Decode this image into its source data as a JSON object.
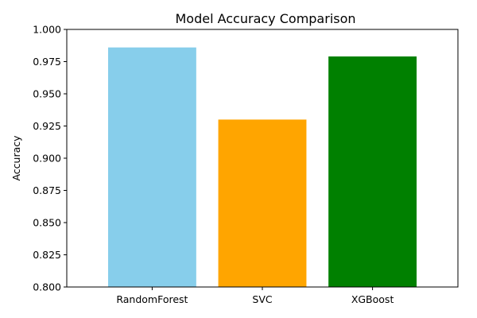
{
  "chart_data": {
    "type": "bar",
    "title": "Model Accuracy Comparison",
    "xlabel": "",
    "ylabel": "Accuracy",
    "categories": [
      "RandomForest",
      "SVC",
      "XGBoost"
    ],
    "values": [
      0.986,
      0.93,
      0.979
    ],
    "colors": [
      "#87ceeb",
      "#ffa500",
      "#008000"
    ],
    "ylim": [
      0.8,
      1.0
    ],
    "yticks": [
      0.8,
      0.825,
      0.85,
      0.875,
      0.9,
      0.925,
      0.95,
      0.975,
      1.0
    ],
    "ytick_labels": [
      "0.800",
      "0.825",
      "0.850",
      "0.875",
      "0.900",
      "0.925",
      "0.950",
      "0.975",
      "1.000"
    ],
    "grid": false,
    "legend": "none"
  }
}
